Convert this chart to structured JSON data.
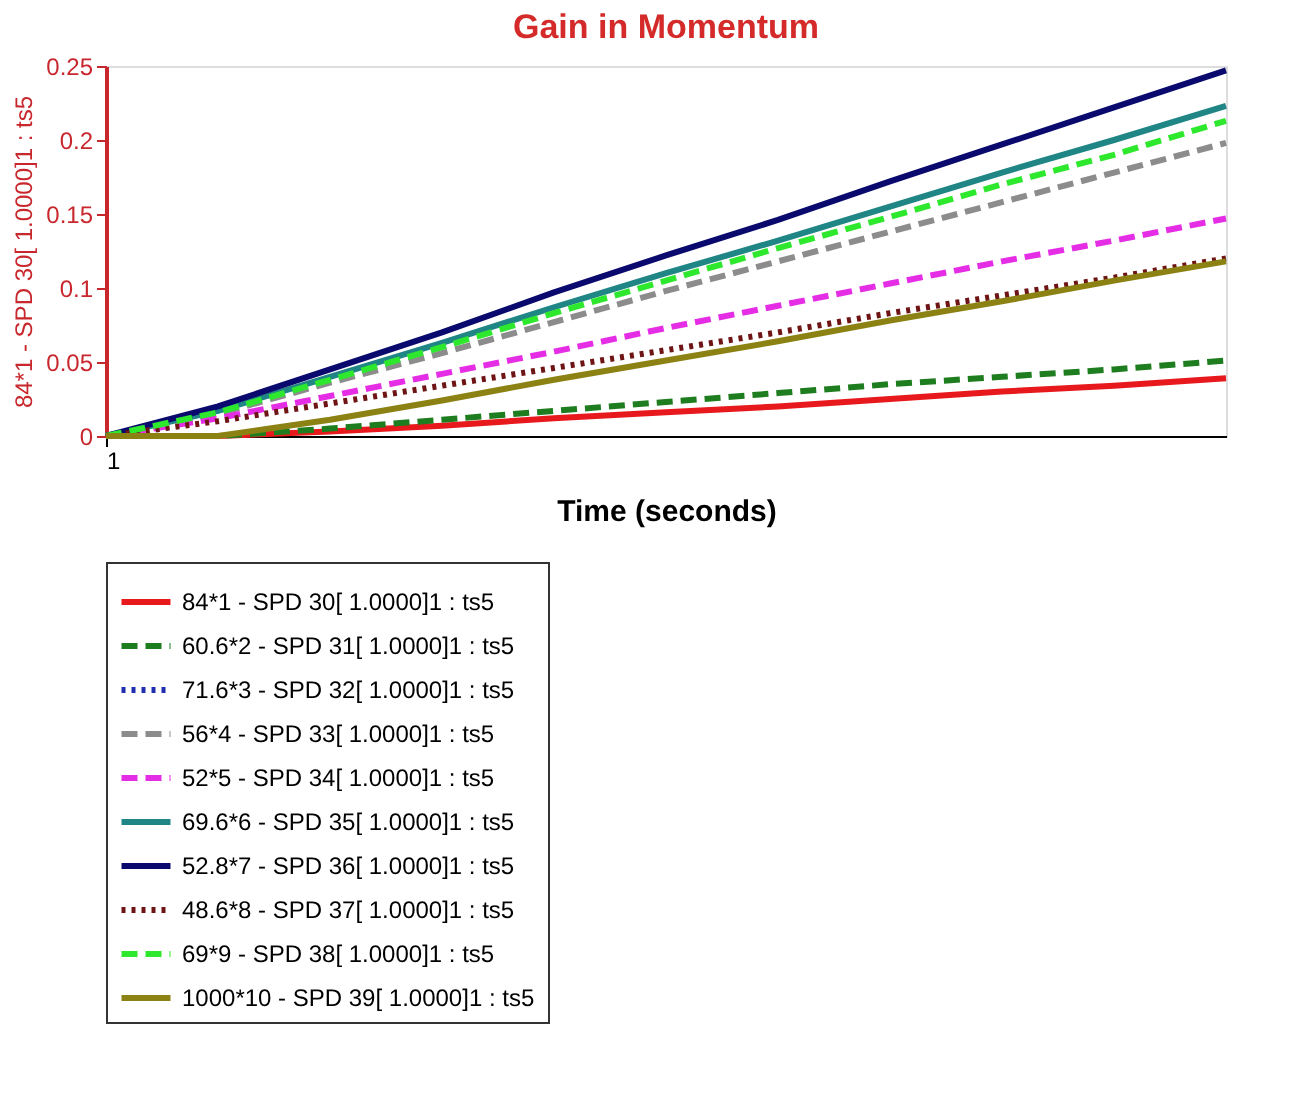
{
  "chart_data": {
    "type": "line",
    "title": "Gain in Momentum",
    "xlabel": "Time (seconds)",
    "ylabel": "84*1 - SPD 30[ 1.0000]1 : ts5",
    "categories": [
      "1",
      null,
      null,
      null,
      null,
      null,
      null,
      null,
      null,
      null,
      null
    ],
    "ylim": [
      0,
      0.25
    ],
    "yticks": [
      0,
      0.05,
      0.1,
      0.15,
      0.2,
      0.25
    ],
    "grid": false,
    "legend": "bottom",
    "marker": "none",
    "series": [
      {
        "name": "84*1 - SPD 30[ 1.0000]1 : ts5",
        "color": "#e8191d",
        "line_style": "solid",
        "values": [
          0,
          0,
          0.003,
          0.007,
          0.012,
          0.016,
          0.02,
          0.025,
          0.03,
          0.034,
          0.039
        ]
      },
      {
        "name": "60.6*2 - SPD 31[ 1.0000]1 : ts5",
        "color": "#1e7d1e",
        "line_style": "dashed",
        "values": [
          0,
          0,
          0.005,
          0.011,
          0.017,
          0.023,
          0.029,
          0.035,
          0.04,
          0.045,
          0.051
        ]
      },
      {
        "name": "71.6*3 - SPD 32[ 1.0000]1 : ts5",
        "color": "#1f2fb0",
        "line_style": "dotted",
        "values": [
          null,
          null,
          null,
          null,
          null,
          null,
          null,
          null,
          null,
          null,
          null
        ]
      },
      {
        "name": "56*4 - SPD 33[ 1.0000]1 : ts5",
        "color": "#8c8c8c",
        "line_style": "dashed",
        "values": [
          0,
          0.015,
          0.036,
          0.056,
          0.077,
          0.098,
          0.118,
          0.138,
          0.158,
          0.178,
          0.198
        ]
      },
      {
        "name": "52*5 - SPD 34[ 1.0000]1 : ts5",
        "color": "#e62de6",
        "line_style": "dashed",
        "values": [
          0,
          0.012,
          0.027,
          0.042,
          0.057,
          0.073,
          0.088,
          0.103,
          0.118,
          0.132,
          0.147
        ]
      },
      {
        "name": "69.6*6 - SPD 35[ 1.0000]1 : ts5",
        "color": "#1f8585",
        "line_style": "solid",
        "values": [
          0,
          0.017,
          0.04,
          0.063,
          0.087,
          0.11,
          0.132,
          0.155,
          0.178,
          0.2,
          0.223
        ]
      },
      {
        "name": "52.8*7 - SPD 36[ 1.0000]1 : ts5",
        "color": "#0a0a6e",
        "line_style": "solid",
        "values": [
          0,
          0.02,
          0.045,
          0.07,
          0.097,
          0.122,
          0.146,
          0.172,
          0.197,
          0.222,
          0.247
        ]
      },
      {
        "name": "48.6*8 - SPD 37[ 1.0000]1 : ts5",
        "color": "#6e1414",
        "line_style": "dotted",
        "values": [
          0,
          0.01,
          0.022,
          0.034,
          0.046,
          0.058,
          0.07,
          0.083,
          0.095,
          0.107,
          0.12
        ]
      },
      {
        "name": "69*9 - SPD 38[ 1.0000]1 : ts5",
        "color": "#2ee82e",
        "line_style": "dashed",
        "values": [
          0,
          0.016,
          0.038,
          0.06,
          0.083,
          0.105,
          0.127,
          0.148,
          0.17,
          0.19,
          0.213
        ]
      },
      {
        "name": "1000*10 - SPD 39[ 1.0000]1 : ts5",
        "color": "#8c8214",
        "line_style": "solid",
        "values": [
          0,
          0,
          0.011,
          0.024,
          0.038,
          0.051,
          0.064,
          0.078,
          0.091,
          0.105,
          0.118
        ]
      }
    ]
  }
}
